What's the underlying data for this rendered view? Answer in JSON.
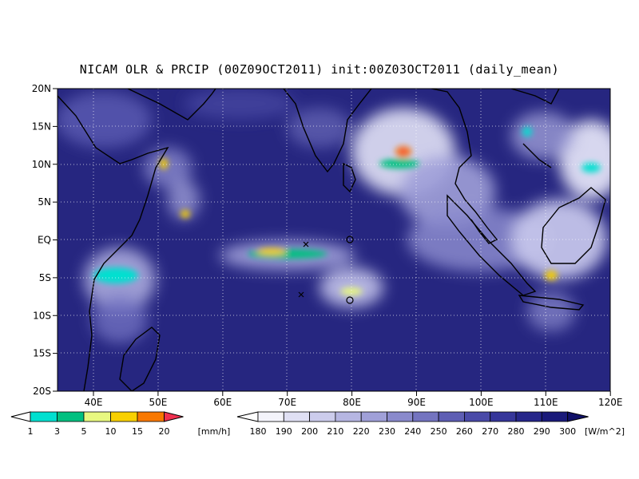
{
  "title": "NICAM OLR & PRCIP (00Z09OCT2011) init:00Z03OCT2011 (daily_mean)",
  "lon_labels": [
    "40E",
    "50E",
    "60E",
    "70E",
    "80E",
    "90E",
    "100E",
    "110E",
    "120E"
  ],
  "lat_labels": [
    "20N",
    "15N",
    "10N",
    "5N",
    "EQ",
    "5S",
    "10S",
    "15S",
    "20S"
  ],
  "precip_colorbar": {
    "levels": [
      "1",
      "3",
      "5",
      "10",
      "15",
      "20"
    ],
    "unit": "[mm/h]",
    "colors": [
      "#00e0d0",
      "#00c080",
      "#e8f880",
      "#f8d000",
      "#f87800",
      "#f03050"
    ]
  },
  "olr_colorbar": {
    "levels": [
      "180",
      "190",
      "200",
      "210",
      "220",
      "230",
      "240",
      "250",
      "260",
      "270",
      "280",
      "290",
      "300"
    ],
    "unit": "[W/m^2]",
    "colors": [
      "#f4f4fb",
      "#e0e0f4",
      "#ccccec",
      "#b6b6e2",
      "#a0a0d8",
      "#8a8acc",
      "#7474c0",
      "#5e5eb4",
      "#4a4aa8",
      "#36369a",
      "#26268a",
      "#1a1a7a",
      "#101068"
    ]
  },
  "map": {
    "lon_range": [
      35,
      120
    ],
    "lat_range": [
      -20,
      20
    ],
    "ocean_color": "#262680",
    "grid": "dotted",
    "markers": [
      {
        "symbol": "x",
        "lon": 73.3,
        "lat": -0.7
      },
      {
        "symbol": "o",
        "lon": 80,
        "lat": 0
      },
      {
        "symbol": "x",
        "lon": 72.5,
        "lat": -7.3
      },
      {
        "symbol": "o",
        "lon": 80,
        "lat": -8
      }
    ]
  }
}
